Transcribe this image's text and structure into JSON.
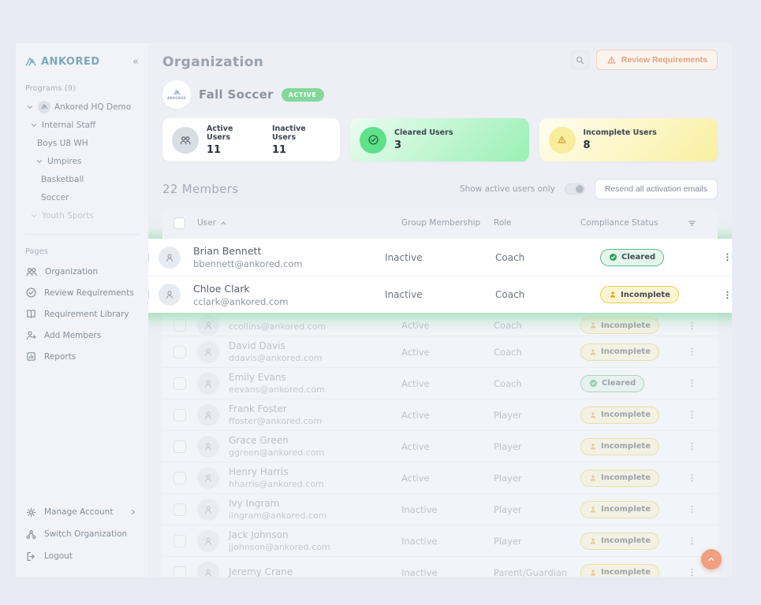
{
  "brand": {
    "name": "ANKORED",
    "collapse_icon": "«",
    "logo_icon": "ankored-mark-icon",
    "accent_teal": "#7ea8ba"
  },
  "sidebar": {
    "programs_label": "Programs (9)",
    "tree": [
      {
        "label": "Ankored HQ Demo",
        "level": 0,
        "chevron": true,
        "avatar": true
      },
      {
        "label": "Internal Staff",
        "level": 1,
        "chevron": true
      },
      {
        "label": "Boys U8 WH",
        "level": 2
      },
      {
        "label": "Umpires",
        "level": 3,
        "chevron": true
      },
      {
        "label": "Basketball",
        "level": 4
      },
      {
        "label": "Soccer",
        "level": 4
      },
      {
        "label": "Youth Sports",
        "level": 1,
        "chevron": true,
        "faded": true
      }
    ],
    "pages_label": "Pages",
    "pages": [
      {
        "label": "Organization",
        "icon": "users-icon"
      },
      {
        "label": "Review Requirements",
        "icon": "check-circle-icon"
      },
      {
        "label": "Requirement Library",
        "icon": "book-icon"
      },
      {
        "label": "Add Members",
        "icon": "person-add-icon"
      },
      {
        "label": "Reports",
        "icon": "report-icon"
      }
    ],
    "footer": [
      {
        "label": "Manage Account",
        "icon": "gear-icon",
        "has_chevron": true
      },
      {
        "label": "Switch Organization",
        "icon": "org-switch-icon"
      },
      {
        "label": "Logout",
        "icon": "logout-icon"
      }
    ]
  },
  "header": {
    "title": "Organization",
    "search_icon": "search-icon",
    "review_button": "Review Requirements",
    "review_icon": "warning-triangle-icon",
    "program_name": "Fall Soccer",
    "program_status": "ACTIVE",
    "status_color": "#83d79c"
  },
  "stats": {
    "active_label": "Active Users",
    "active_value": "11",
    "inactive_label": "Inactive Users",
    "inactive_value": "11",
    "cleared_label": "Cleared Users",
    "cleared_value": "3",
    "incomplete_label": "Incomplete Users",
    "incomplete_value": "8",
    "cleared_color": "#5fe08a",
    "incomplete_color": "#f7ed9d"
  },
  "members": {
    "title": "22 Members",
    "toggle_label": "Show active users only",
    "toggle_state": "off",
    "resend_button": "Resend all activation emails",
    "columns": {
      "user": "User",
      "membership": "Group Membership",
      "role": "Role",
      "status": "Compliance Status"
    }
  },
  "highlighted_rows": [
    {
      "name": "Brian Bennett",
      "email": "bbennett@ankored.com",
      "membership": "Inactive",
      "role": "Coach",
      "status": "Cleared"
    },
    {
      "name": "Chloe Clark",
      "email": "cclark@ankored.com",
      "membership": "Inactive",
      "role": "Coach",
      "status": "Incomplete"
    }
  ],
  "rows": [
    {
      "name": "",
      "email": "ccollins@ankored.com",
      "membership": "Active",
      "role": "Coach",
      "status": "Incomplete",
      "partial": true
    },
    {
      "name": "David Davis",
      "email": "ddavis@ankored.com",
      "membership": "Active",
      "role": "Coach",
      "status": "Incomplete"
    },
    {
      "name": "Emily Evans",
      "email": "eevans@ankored.com",
      "membership": "Active",
      "role": "Coach",
      "status": "Cleared"
    },
    {
      "name": "Frank Foster",
      "email": "ffoster@ankored.com",
      "membership": "Active",
      "role": "Player",
      "status": "Incomplete"
    },
    {
      "name": "Grace Green",
      "email": "ggreen@ankored.com",
      "membership": "Active",
      "role": "Player",
      "status": "Incomplete"
    },
    {
      "name": "Henry Harris",
      "email": "hharris@ankored.com",
      "membership": "Active",
      "role": "Player",
      "status": "Incomplete"
    },
    {
      "name": "Ivy Ingram",
      "email": "iingram@ankored.com",
      "membership": "Inactive",
      "role": "Player",
      "status": "Incomplete"
    },
    {
      "name": "Jack Johnson",
      "email": "jjohnson@ankored.com",
      "membership": "Inactive",
      "role": "Player",
      "status": "Incomplete"
    },
    {
      "name": "Jeremy Crane",
      "email": "",
      "membership": "Inactive",
      "role": "Parent/Guardian",
      "status": "Incomplete"
    }
  ],
  "badges": {
    "cleared_label": "Cleared",
    "incomplete_label": "Incomplete",
    "cleared_border": "#5cbc86",
    "incomplete_border": "#eccf52"
  },
  "fab": {
    "icon": "chevron-up-icon",
    "color": "#f19e81"
  }
}
